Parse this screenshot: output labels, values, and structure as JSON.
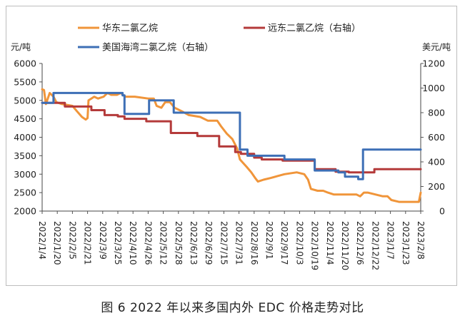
{
  "caption": "图 6  2022 年以来多国内外 EDC 价格走势对比",
  "chart_data": {
    "type": "line",
    "left_axis_unit": "元/吨",
    "right_axis_unit": "美元/吨",
    "ylim_left": [
      2000,
      6000
    ],
    "ylim_right": [
      0,
      1200
    ],
    "yticks_left": [
      2000,
      2500,
      3000,
      3500,
      4000,
      4500,
      5000,
      5500,
      6000
    ],
    "yticks_right": [
      0,
      200,
      400,
      600,
      800,
      1000,
      1200
    ],
    "x_start": "2022/1/4",
    "x_end": "2023/2/8",
    "xtick_labels": [
      "2022/1/4",
      "2022/1/20",
      "2022/2/5",
      "2022/2/21",
      "2022/3/9",
      "2022/3/25",
      "2022/4/10",
      "2022/4/26",
      "2022/5/12",
      "2022/5/28",
      "2022/6/13",
      "2022/6/29",
      "2022/7/15",
      "2022/7/31",
      "2022/8/16",
      "2022/9/1",
      "2022/9/17",
      "2022/10/3",
      "2022/10/19",
      "2022/11/4",
      "2022/11/20",
      "2022/12/6",
      "2022/12/22",
      "2023/1/7",
      "2023/1/23",
      "2023/2/8"
    ],
    "legend": [
      {
        "name": "华东二氯乙烷",
        "color": "#f0953a"
      },
      {
        "name": "远东二氯乙烷（右轴）",
        "color": "#b43a3a"
      },
      {
        "name": "美国海湾二氯乙烷（右轴）",
        "color": "#3d6fb6"
      }
    ],
    "series": [
      {
        "name": "华东二氯乙烷",
        "axis": "left",
        "color": "#f0953a",
        "step": false,
        "points": [
          [
            "2022/1/4",
            5300
          ],
          [
            "2022/1/6",
            5280
          ],
          [
            "2022/1/8",
            4900
          ],
          [
            "2022/1/12",
            5200
          ],
          [
            "2022/1/16",
            5100
          ],
          [
            "2022/1/19",
            4950
          ],
          [
            "2022/1/25",
            4900
          ],
          [
            "2022/2/5",
            4850
          ],
          [
            "2022/2/10",
            4700
          ],
          [
            "2022/2/15",
            4550
          ],
          [
            "2022/2/19",
            4480
          ],
          [
            "2022/2/21",
            4520
          ],
          [
            "2022/2/22",
            5000
          ],
          [
            "2022/2/28",
            5100
          ],
          [
            "2022/3/4",
            5050
          ],
          [
            "2022/3/10",
            5100
          ],
          [
            "2022/3/14",
            5200
          ],
          [
            "2022/3/18",
            5150
          ],
          [
            "2022/3/24",
            5150
          ],
          [
            "2022/3/28",
            5200
          ],
          [
            "2022/4/2",
            5100
          ],
          [
            "2022/4/12",
            5100
          ],
          [
            "2022/4/26",
            5050
          ],
          [
            "2022/5/2",
            5050
          ],
          [
            "2022/5/5",
            4850
          ],
          [
            "2022/5/10",
            4800
          ],
          [
            "2022/5/14",
            4950
          ],
          [
            "2022/5/19",
            4950
          ],
          [
            "2022/5/24",
            4800
          ],
          [
            "2022/6/1",
            4700
          ],
          [
            "2022/6/8",
            4600
          ],
          [
            "2022/6/20",
            4550
          ],
          [
            "2022/6/28",
            4450
          ],
          [
            "2022/7/8",
            4450
          ],
          [
            "2022/7/12",
            4300
          ],
          [
            "2022/7/18",
            4100
          ],
          [
            "2022/7/24",
            3950
          ],
          [
            "2022/7/29",
            3700
          ],
          [
            "2022/8/1",
            3400
          ],
          [
            "2022/8/8",
            3200
          ],
          [
            "2022/8/13",
            3050
          ],
          [
            "2022/8/17",
            2900
          ],
          [
            "2022/8/20",
            2800
          ],
          [
            "2022/8/26",
            2850
          ],
          [
            "2022/9/3",
            2900
          ],
          [
            "2022/9/10",
            2950
          ],
          [
            "2022/9/17",
            3000
          ],
          [
            "2022/9/30",
            3050
          ],
          [
            "2022/10/8",
            3000
          ],
          [
            "2022/10/12",
            2850
          ],
          [
            "2022/10/15",
            2600
          ],
          [
            "2022/10/22",
            2550
          ],
          [
            "2022/10/28",
            2550
          ],
          [
            "2022/11/2",
            2500
          ],
          [
            "2022/11/8",
            2450
          ],
          [
            "2022/11/15",
            2450
          ],
          [
            "2022/11/24",
            2450
          ],
          [
            "2022/12/2",
            2450
          ],
          [
            "2022/12/6",
            2400
          ],
          [
            "2022/12/10",
            2500
          ],
          [
            "2022/12/14",
            2500
          ],
          [
            "2022/12/22",
            2450
          ],
          [
            "2022/12/30",
            2400
          ],
          [
            "2023/1/4",
            2400
          ],
          [
            "2023/1/8",
            2300
          ],
          [
            "2023/1/16",
            2250
          ],
          [
            "2023/1/27",
            2250
          ],
          [
            "2023/2/6",
            2250
          ],
          [
            "2023/2/8",
            2500
          ]
        ]
      },
      {
        "name": "远东二氯乙烷（右轴）",
        "axis": "right",
        "color": "#b43a3a",
        "step": true,
        "points": [
          [
            "2022/1/4",
            880
          ],
          [
            "2022/1/28",
            850
          ],
          [
            "2022/2/25",
            820
          ],
          [
            "2022/3/11",
            780
          ],
          [
            "2022/3/25",
            770
          ],
          [
            "2022/4/1",
            750
          ],
          [
            "2022/4/24",
            730
          ],
          [
            "2022/5/20",
            635
          ],
          [
            "2022/6/17",
            610
          ],
          [
            "2022/7/1",
            610
          ],
          [
            "2022/7/10",
            525
          ],
          [
            "2022/7/27",
            480
          ],
          [
            "2022/8/2",
            465
          ],
          [
            "2022/8/16",
            435
          ],
          [
            "2022/8/24",
            420
          ],
          [
            "2022/9/15",
            410
          ],
          [
            "2022/10/19",
            340
          ],
          [
            "2022/11/10",
            320
          ],
          [
            "2022/11/24",
            315
          ],
          [
            "2022/12/21",
            340
          ],
          [
            "2023/2/8",
            340
          ]
        ]
      },
      {
        "name": "美国海湾二氯乙烷（右轴）",
        "axis": "right",
        "color": "#3d6fb6",
        "step": true,
        "points": [
          [
            "2022/1/4",
            880
          ],
          [
            "2022/1/16",
            960
          ],
          [
            "2022/3/30",
            940
          ],
          [
            "2022/4/1",
            790
          ],
          [
            "2022/4/27",
            900
          ],
          [
            "2022/5/23",
            800
          ],
          [
            "2022/8/1",
            500
          ],
          [
            "2022/8/9",
            450
          ],
          [
            "2022/9/17",
            420
          ],
          [
            "2022/10/19",
            330
          ],
          [
            "2022/11/13",
            315
          ],
          [
            "2022/11/20",
            280
          ],
          [
            "2022/12/4",
            260
          ],
          [
            "2022/12/7",
            260
          ],
          [
            "2022/12/9",
            500
          ],
          [
            "2023/2/8",
            500
          ]
        ]
      }
    ]
  }
}
